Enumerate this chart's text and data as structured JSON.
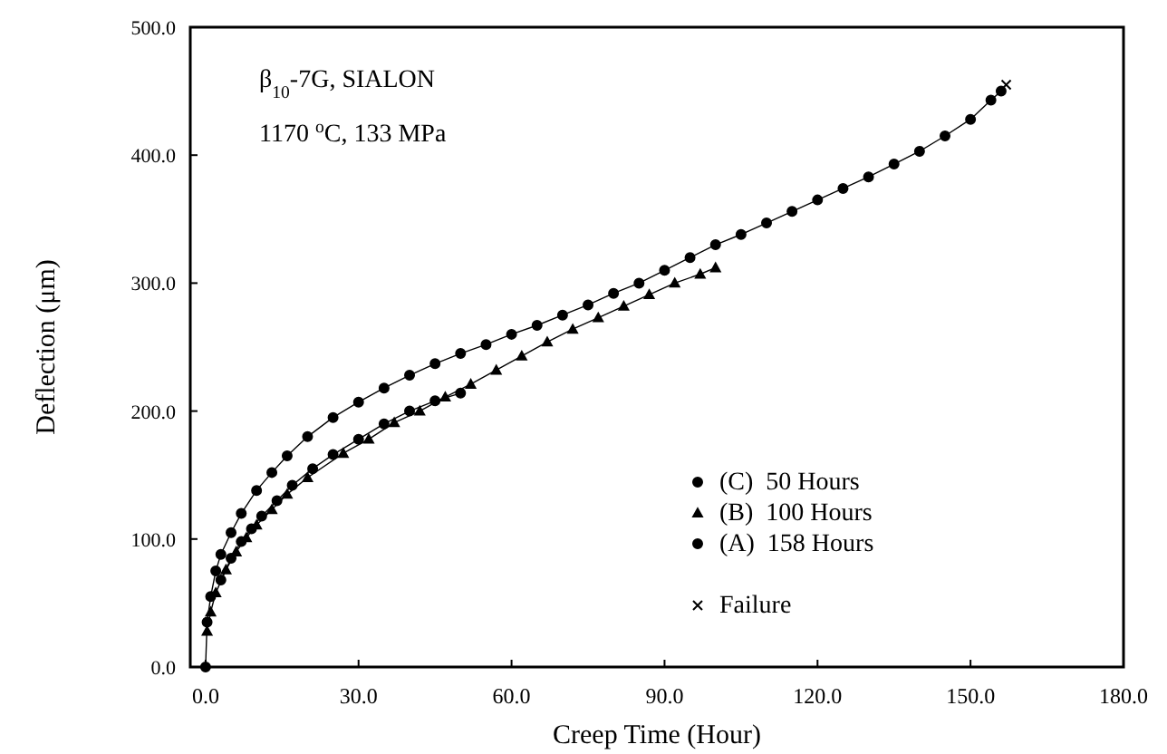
{
  "chart_data": {
    "type": "line",
    "xlabel": "Creep Time (Hour)",
    "ylabel": "Deflection (μm)",
    "xlim": [
      -3,
      180
    ],
    "ylim": [
      0,
      500
    ],
    "xticks": [
      {
        "value": 0,
        "label": "0.0"
      },
      {
        "value": 30,
        "label": "30.0"
      },
      {
        "value": 60,
        "label": "60.0"
      },
      {
        "value": 90,
        "label": "90.0"
      },
      {
        "value": 120,
        "label": "120.0"
      },
      {
        "value": 150,
        "label": "150.0"
      },
      {
        "value": 180,
        "label": "180.0"
      }
    ],
    "yticks": [
      {
        "value": 0,
        "label": "0.0"
      },
      {
        "value": 100,
        "label": "100.0"
      },
      {
        "value": 200,
        "label": "200.0"
      },
      {
        "value": 300,
        "label": "300.0"
      },
      {
        "value": 400,
        "label": "400.0"
      },
      {
        "value": 500,
        "label": "500.0"
      }
    ],
    "grid": false,
    "legend": "bottom right",
    "line_style": "solid",
    "annotations": [
      "β$_{10}$-7G, SIALON",
      "1170 $^{o}$C, 133 MPa"
    ],
    "series": [
      {
        "name": "(C)  50 Hours",
        "marker": "circle",
        "color": "#000000",
        "x": [
          3,
          5,
          7,
          9,
          11,
          14,
          17,
          21,
          25,
          30,
          35,
          40,
          45,
          50
        ],
        "values": [
          68,
          85,
          98,
          108,
          118,
          130,
          142,
          155,
          166,
          178,
          190,
          200,
          208,
          214
        ]
      },
      {
        "name": "(B)  100 Hours",
        "marker": "triangle",
        "color": "#000000",
        "x": [
          0.3,
          1,
          2,
          4,
          6,
          8,
          10,
          13,
          16,
          20,
          27,
          32,
          37,
          42,
          47,
          52,
          57,
          62,
          67,
          72,
          77,
          82,
          87,
          92,
          97,
          100
        ],
        "values": [
          28,
          43,
          58,
          76,
          90,
          101,
          111,
          123,
          135,
          148,
          167,
          178,
          191,
          200,
          211,
          221,
          232,
          243,
          254,
          264,
          273,
          282,
          291,
          300,
          307,
          312
        ]
      },
      {
        "name": "(A)  158 Hours",
        "marker": "circle",
        "color": "#000000",
        "x": [
          0,
          0.3,
          1,
          2,
          3,
          5,
          7,
          10,
          13,
          16,
          20,
          25,
          30,
          35,
          40,
          45,
          50,
          55,
          60,
          65,
          70,
          75,
          80,
          85,
          90,
          95,
          100,
          105,
          110,
          115,
          120,
          125,
          130,
          135,
          140,
          145,
          150,
          154,
          156
        ],
        "values": [
          0,
          35,
          55,
          75,
          88,
          105,
          120,
          138,
          152,
          165,
          180,
          195,
          207,
          218,
          228,
          237,
          245,
          252,
          260,
          267,
          275,
          283,
          292,
          300,
          310,
          320,
          330,
          338,
          347,
          356,
          365,
          374,
          383,
          393,
          403,
          415,
          428,
          443,
          450
        ]
      },
      {
        "name": "Failure",
        "type": "scatter",
        "marker": "cross",
        "color": "#000000",
        "x": [
          157
        ],
        "values": [
          455
        ]
      }
    ]
  }
}
